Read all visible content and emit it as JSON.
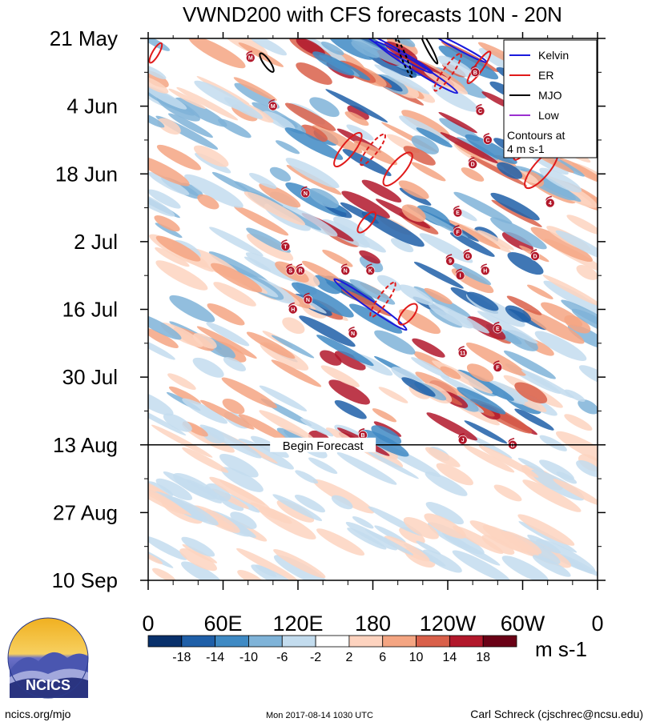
{
  "chart_data": {
    "type": "heatmap",
    "title": "VWND200 with CFS forecasts  10N - 20N",
    "x_tick_labels": [
      "0",
      "60E",
      "120E",
      "180",
      "120W",
      "60W",
      "0"
    ],
    "x_range": [
      0,
      360
    ],
    "y_tick_labels": [
      "21 May",
      "4 Jun",
      "18 Jun",
      "2 Jul",
      "16 Jul",
      "30 Jul",
      "13 Aug",
      "27 Aug",
      "10 Sep"
    ],
    "y_range_days": [
      0,
      112
    ],
    "forecast_line": {
      "day": 84,
      "label": "Begin Forecast"
    },
    "legend": {
      "entries": [
        {
          "label": "Kelvin",
          "color": "#1a1adc"
        },
        {
          "label": "ER",
          "color": "#e01a1a"
        },
        {
          "label": "MJO",
          "color": "#000000"
        },
        {
          "label": "Low",
          "color": "#9b30d0"
        }
      ],
      "note_line1": "Contours at",
      "note_line2": "4 m s-1"
    },
    "colorbar": {
      "labels": [
        "-18",
        "-14",
        "-10",
        "-6",
        "-2",
        "2",
        "6",
        "10",
        "14",
        "18"
      ],
      "colors": [
        "#08306b",
        "#1f5fa8",
        "#3f8ac4",
        "#7fb3d8",
        "#c3dcee",
        "#ffffff",
        "#fdd3bf",
        "#f4a582",
        "#d9604a",
        "#b2182b",
        "#6a0116"
      ],
      "units": "m s-1"
    },
    "storms": [
      {
        "label": "M",
        "lon": 82,
        "day": 4
      },
      {
        "label": "M",
        "lon": 100,
        "day": 14
      },
      {
        "label": "B",
        "lon": 262,
        "day": 7
      },
      {
        "label": "C",
        "lon": 266,
        "day": 15
      },
      {
        "label": "B",
        "lon": 312,
        "day": 20
      },
      {
        "label": "C",
        "lon": 272,
        "day": 21
      },
      {
        "label": "D",
        "lon": 260,
        "day": 26
      },
      {
        "label": "N",
        "lon": 126,
        "day": 32
      },
      {
        "label": "4",
        "lon": 322,
        "day": 34
      },
      {
        "label": "E",
        "lon": 248,
        "day": 36
      },
      {
        "label": "F",
        "lon": 248,
        "day": 40
      },
      {
        "label": "T",
        "lon": 110,
        "day": 43
      },
      {
        "label": "G",
        "lon": 256,
        "day": 45
      },
      {
        "label": "9",
        "lon": 242,
        "day": 46
      },
      {
        "label": "D",
        "lon": 310,
        "day": 45
      },
      {
        "label": "S",
        "lon": 114,
        "day": 48
      },
      {
        "label": "R",
        "lon": 122,
        "day": 48
      },
      {
        "label": "N",
        "lon": 158,
        "day": 48
      },
      {
        "label": "K",
        "lon": 178,
        "day": 48
      },
      {
        "label": "H",
        "lon": 270,
        "day": 48
      },
      {
        "label": "I",
        "lon": 250,
        "day": 49
      },
      {
        "label": "N",
        "lon": 128,
        "day": 54
      },
      {
        "label": "H",
        "lon": 116,
        "day": 56
      },
      {
        "label": "N",
        "lon": 164,
        "day": 61
      },
      {
        "label": "E",
        "lon": 280,
        "day": 60
      },
      {
        "label": "11",
        "lon": 252,
        "day": 65
      },
      {
        "label": "F",
        "lon": 280,
        "day": 68
      },
      {
        "label": "B",
        "lon": 172,
        "day": 82
      },
      {
        "label": "J",
        "lon": 252,
        "day": 83
      },
      {
        "label": "B",
        "lon": 292,
        "day": 84
      }
    ]
  },
  "footer": {
    "left": "ncics.org/mjo",
    "center": "Mon 2017-08-14 1030 UTC",
    "right": "Carl Schreck (cjschrec@ncsu.edu)"
  },
  "logo": {
    "text": "NCICS"
  }
}
